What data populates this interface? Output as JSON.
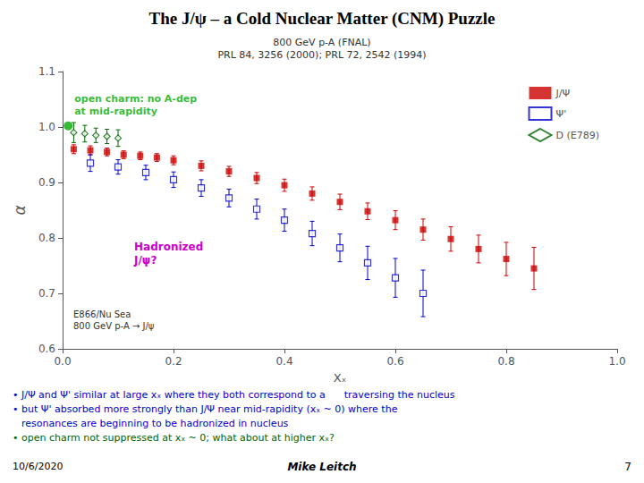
{
  "chart_data": {
    "type": "scatter",
    "title": "The J/ψ – a Cold Nuclear Matter (CNM) Puzzle",
    "subtitle": "800 GeV p-A (FNAL)\nPRL 84, 3256 (2000); PRL 72, 2542 (1994)",
    "x_label": "Xₓ",
    "y_label": "α",
    "xlim": [
      0,
      1
    ],
    "xticks": [
      {
        "value": 0,
        "label": "0.0"
      },
      0.2,
      0.4,
      0.6,
      0.8,
      {
        "value": 1,
        "label": "1.0"
      }
    ],
    "ylim": [
      0.6,
      1.1
    ],
    "yticks": [
      0.6,
      0.7,
      0.8,
      0.9,
      {
        "value": 1,
        "label": "1.0"
      },
      1.1
    ],
    "grid": false,
    "legend": "upper right",
    "series": [
      {
        "name": "J/Ψ",
        "color": "#cc0000",
        "marker": "square",
        "x": [
          0.02,
          0.05,
          0.08,
          0.11,
          0.14,
          0.17,
          0.2,
          0.25,
          0.3,
          0.35,
          0.4,
          0.45,
          0.5,
          0.55,
          0.6,
          0.65,
          0.7,
          0.75,
          0.8,
          0.85
        ],
        "values": [
          0.96,
          0.958,
          0.955,
          0.95,
          0.948,
          0.945,
          0.94,
          0.93,
          0.92,
          0.908,
          0.895,
          0.88,
          0.865,
          0.848,
          0.832,
          0.815,
          0.798,
          0.78,
          0.762,
          0.745
        ],
        "errors": [
          0.008,
          0.008,
          0.007,
          0.007,
          0.007,
          0.007,
          0.008,
          0.009,
          0.009,
          0.01,
          0.011,
          0.012,
          0.014,
          0.015,
          0.017,
          0.019,
          0.022,
          0.025,
          0.03,
          0.038
        ]
      },
      {
        "name": "Ψ'",
        "color": "#0000cc",
        "marker": "square_open",
        "x": [
          0.05,
          0.1,
          0.15,
          0.2,
          0.25,
          0.3,
          0.35,
          0.4,
          0.45,
          0.5,
          0.55,
          0.6,
          0.65
        ],
        "values": [
          0.935,
          0.928,
          0.918,
          0.905,
          0.89,
          0.872,
          0.852,
          0.832,
          0.808,
          0.782,
          0.755,
          0.728,
          0.7
        ],
        "errors": [
          0.015,
          0.013,
          0.013,
          0.014,
          0.015,
          0.016,
          0.018,
          0.02,
          0.022,
          0.025,
          0.03,
          0.035,
          0.042
        ]
      },
      {
        "name": "D (E789)",
        "color": "#006400",
        "marker": "diamond_open",
        "x": [
          0.02,
          0.04,
          0.06,
          0.08,
          0.1
        ],
        "values": [
          0.99,
          0.988,
          0.985,
          0.983,
          0.98
        ],
        "errors": [
          0.018,
          0.015,
          0.013,
          0.013,
          0.015
        ]
      }
    ],
    "annotations": [
      {
        "text": "open charm: no A-dep\nat mid-rapidity",
        "x": 0.01,
        "y": 1.002,
        "color": "#00aa00"
      },
      {
        "text": "Hadronized\nJ/ψ?",
        "color": "#cc00cc"
      },
      {
        "text": "E866/Nu Sea\n800 GeV p-A → J/ψ",
        "color": "#333333"
      }
    ],
    "notes": [
      {
        "text": "• J/Ψ and Ψ' similar at large xₓ where they both correspond to a      traversing the nucleus",
        "color": "#0000cc"
      },
      {
        "text": "• but Ψ' absorbed more strongly than J/Ψ near mid-rapidity (xₓ ~ 0) where the",
        "color": "#0000cc"
      },
      {
        "text": "resonances are beginning to be hadronized in nucleus",
        "color": "#0000cc"
      },
      {
        "text": "• open charm not suppressed at xₓ ~ 0; what about at higher xₓ?",
        "color": "#006400"
      }
    ],
    "footer": [
      "10/6/2020",
      "Mike Leitch",
      "7"
    ]
  }
}
